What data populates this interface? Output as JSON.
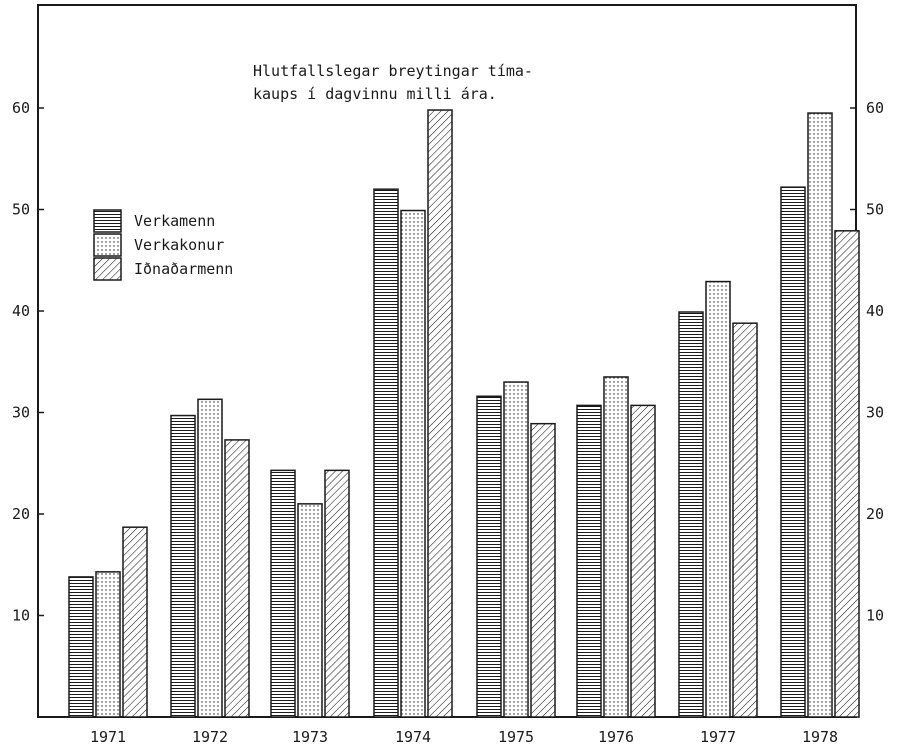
{
  "chart_data": {
    "type": "bar",
    "title_lines": [
      "Hlutfallslegar breytingar tíma-",
      "kaups í dagvinnu milli ára."
    ],
    "categories": [
      "1971",
      "1972",
      "1973",
      "1974",
      "1975",
      "1976",
      "1977",
      "1978"
    ],
    "series": [
      {
        "name": "Verkamenn",
        "pattern": "horizontal-lines",
        "values": [
          13.8,
          29.7,
          24.3,
          52.0,
          31.6,
          30.7,
          39.9,
          52.2
        ]
      },
      {
        "name": "Verkakonur",
        "pattern": "dots",
        "values": [
          14.3,
          31.3,
          21.0,
          49.9,
          33.0,
          33.5,
          42.9,
          59.5
        ]
      },
      {
        "name": "Iðnaðarmenn",
        "pattern": "diagonal-lines",
        "values": [
          18.7,
          27.3,
          24.3,
          59.8,
          28.9,
          30.7,
          38.8,
          47.9
        ]
      }
    ],
    "ylim": [
      0,
      70
    ],
    "yticks": [
      "10",
      "20",
      "30",
      "40",
      "50",
      "60"
    ],
    "ytick_values": [
      10,
      20,
      30,
      40,
      50,
      60
    ],
    "y_axis_both_sides": true,
    "legend_position": "left, upper-middle",
    "grid": false,
    "colors": {
      "ink": "#1a1a1a",
      "background": "#ffffff"
    }
  }
}
